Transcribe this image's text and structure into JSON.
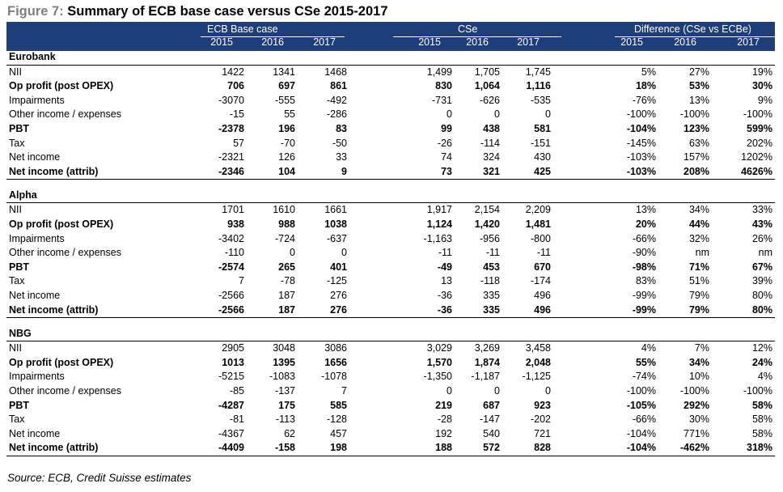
{
  "title": {
    "figure": "Figure 7:",
    "text": "Summary of ECB base case versus CSe 2015-2017"
  },
  "header": {
    "groups": [
      "ECB Base case",
      "CSe",
      "Difference (CSe vs ECBe)"
    ],
    "years": [
      "2015",
      "2016",
      "2017",
      "2015",
      "2016",
      "2017",
      "2015",
      "2016",
      "2017"
    ]
  },
  "sections": [
    {
      "name": "Eurobank",
      "rows": [
        {
          "label": "NII",
          "bold": false,
          "values": [
            "1422",
            "1341",
            "1468",
            "1,499",
            "1,705",
            "1,745",
            "5%",
            "27%",
            "19%"
          ]
        },
        {
          "label": "Op profit (post OPEX)",
          "bold": true,
          "values": [
            "706",
            "697",
            "861",
            "830",
            "1,064",
            "1,116",
            "18%",
            "53%",
            "30%"
          ]
        },
        {
          "label": "Impairments",
          "bold": false,
          "values": [
            "-3070",
            "-555",
            "-492",
            "-731",
            "-626",
            "-535",
            "-76%",
            "13%",
            "9%"
          ]
        },
        {
          "label": "Other income / expenses",
          "bold": false,
          "values": [
            "-15",
            "55",
            "-286",
            "0",
            "0",
            "0",
            "-100%",
            "-100%",
            "-100%"
          ]
        },
        {
          "label": "PBT",
          "bold": true,
          "values": [
            "-2378",
            "196",
            "83",
            "99",
            "438",
            "581",
            "-104%",
            "123%",
            "599%"
          ]
        },
        {
          "label": "Tax",
          "bold": false,
          "values": [
            "57",
            "-70",
            "-50",
            "-26",
            "-114",
            "-151",
            "-145%",
            "63%",
            "202%"
          ]
        },
        {
          "label": "Net income",
          "bold": false,
          "values": [
            "-2321",
            "126",
            "33",
            "74",
            "324",
            "430",
            "-103%",
            "157%",
            "1202%"
          ]
        },
        {
          "label": "Net income (attrib)",
          "bold": true,
          "values": [
            "-2346",
            "104",
            "9",
            "73",
            "321",
            "425",
            "-103%",
            "208%",
            "4626%"
          ]
        }
      ]
    },
    {
      "name": "Alpha",
      "rows": [
        {
          "label": "NII",
          "bold": false,
          "values": [
            "1701",
            "1610",
            "1661",
            "1,917",
            "2,154",
            "2,209",
            "13%",
            "34%",
            "33%"
          ]
        },
        {
          "label": "Op profit (post OPEX)",
          "bold": true,
          "values": [
            "938",
            "988",
            "1038",
            "1,124",
            "1,420",
            "1,481",
            "20%",
            "44%",
            "43%"
          ]
        },
        {
          "label": "Impairments",
          "bold": false,
          "values": [
            "-3402",
            "-724",
            "-637",
            "-1,163",
            "-956",
            "-800",
            "-66%",
            "32%",
            "26%"
          ]
        },
        {
          "label": "Other income / expenses",
          "bold": false,
          "values": [
            "-110",
            "0",
            "0",
            "-11",
            "-11",
            "-11",
            "-90%",
            "nm",
            "nm"
          ]
        },
        {
          "label": "PBT",
          "bold": true,
          "values": [
            "-2574",
            "265",
            "401",
            "-49",
            "453",
            "670",
            "-98%",
            "71%",
            "67%"
          ]
        },
        {
          "label": "Tax",
          "bold": false,
          "values": [
            "7",
            "-78",
            "-125",
            "13",
            "-118",
            "-174",
            "83%",
            "51%",
            "39%"
          ]
        },
        {
          "label": "Net income",
          "bold": false,
          "values": [
            "-2566",
            "187",
            "276",
            "-36",
            "335",
            "496",
            "-99%",
            "79%",
            "80%"
          ]
        },
        {
          "label": "Net income (attrib)",
          "bold": true,
          "values": [
            "-2566",
            "187",
            "276",
            "-36",
            "335",
            "496",
            "-99%",
            "79%",
            "80%"
          ]
        }
      ]
    },
    {
      "name": "NBG",
      "rows": [
        {
          "label": "NII",
          "bold": false,
          "values": [
            "2905",
            "3048",
            "3086",
            "3,029",
            "3,269",
            "3,458",
            "4%",
            "7%",
            "12%"
          ]
        },
        {
          "label": "Op profit (post OPEX)",
          "bold": true,
          "values": [
            "1013",
            "1395",
            "1656",
            "1,570",
            "1,874",
            "2,048",
            "55%",
            "34%",
            "24%"
          ]
        },
        {
          "label": "Impairments",
          "bold": false,
          "values": [
            "-5215",
            "-1083",
            "-1078",
            "-1,350",
            "-1,187",
            "-1,125",
            "-74%",
            "10%",
            "4%"
          ]
        },
        {
          "label": "Other income / expenses",
          "bold": false,
          "values": [
            "-85",
            "-137",
            "7",
            "0",
            "0",
            "0",
            "-100%",
            "-100%",
            "-100%"
          ]
        },
        {
          "label": "PBT",
          "bold": true,
          "values": [
            "-4287",
            "175",
            "585",
            "219",
            "687",
            "923",
            "-105%",
            "292%",
            "58%"
          ]
        },
        {
          "label": "Tax",
          "bold": false,
          "values": [
            "-81",
            "-113",
            "-128",
            "-28",
            "-147",
            "-202",
            "-66%",
            "30%",
            "58%"
          ]
        },
        {
          "label": "Net income",
          "bold": false,
          "values": [
            "-4367",
            "62",
            "457",
            "192",
            "540",
            "721",
            "-104%",
            "771%",
            "58%"
          ]
        },
        {
          "label": "Net income (attrib)",
          "bold": true,
          "values": [
            "-4409",
            "-158",
            "198",
            "188",
            "572",
            "828",
            "-104%",
            "-462%",
            "318%"
          ]
        }
      ]
    }
  ],
  "source": "Source: ECB, Credit Suisse estimates"
}
